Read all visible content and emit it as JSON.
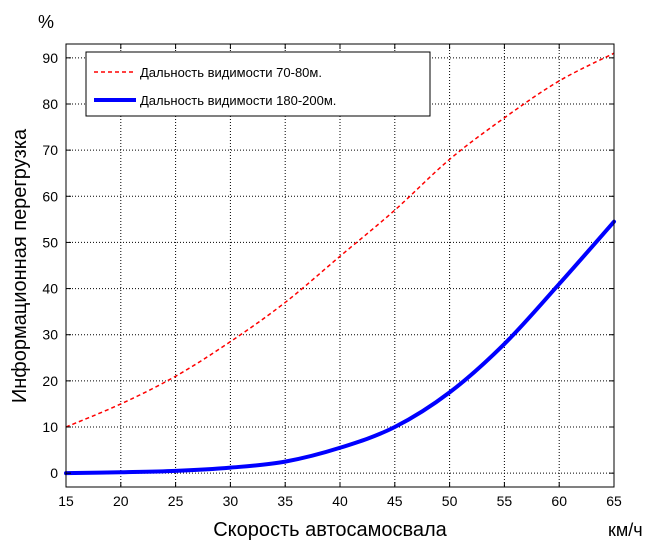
{
  "chart_data": {
    "type": "line",
    "xlabel": "Скорость автосамосвала",
    "x_unit": "км/ч",
    "ylabel": "Информационная перегрузка",
    "y_unit": "%",
    "xlim": [
      15,
      65
    ],
    "ylim": [
      -3,
      93
    ],
    "x_ticks": [
      "15",
      "20",
      "25",
      "30",
      "35",
      "40",
      "45",
      "50",
      "55",
      "60",
      "65"
    ],
    "y_ticks": [
      "0",
      "10",
      "20",
      "30",
      "40",
      "50",
      "60",
      "70",
      "80",
      "90"
    ],
    "grid": true,
    "legend_position": "top-left",
    "series": [
      {
        "name": "Дальность видимости 70-80м.",
        "color": "#ff0000",
        "style": "dashed",
        "x": [
          15,
          20,
          25,
          30,
          35,
          40,
          45,
          50,
          55,
          60,
          65
        ],
        "y": [
          10,
          15,
          21,
          28.5,
          37,
          47,
          57,
          68,
          77,
          85,
          91
        ]
      },
      {
        "name": "Дальность видимости 180-200м.",
        "color": "#0000ff",
        "style": "solid",
        "x": [
          15,
          20,
          25,
          30,
          35,
          40,
          45,
          50,
          55,
          60,
          65
        ],
        "y": [
          0,
          0.2,
          0.5,
          1.2,
          2.5,
          5.5,
          10,
          17.5,
          28,
          41,
          54.5
        ]
      }
    ]
  }
}
